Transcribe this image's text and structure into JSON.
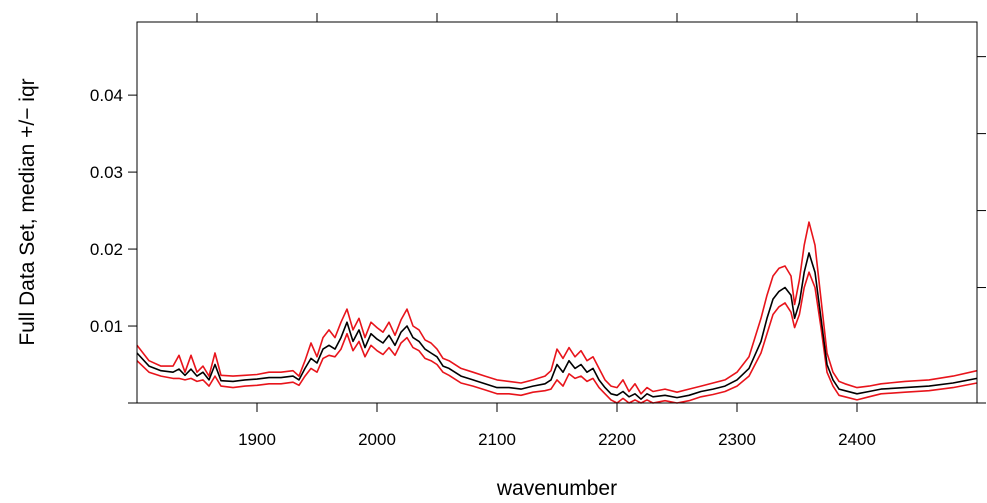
{
  "chart_data": {
    "type": "line",
    "title": "",
    "xlabel": "wavenumber",
    "ylabel": "Full Data Set, median +/− iqr",
    "xlim": [
      1800,
      2500
    ],
    "ylim": [
      0.0,
      0.0495
    ],
    "x_ticks": [
      1900,
      2000,
      2100,
      2200,
      2300,
      2400
    ],
    "x_tick_labels": [
      "1900",
      "2000",
      "2100",
      "2200",
      "2300",
      "2400"
    ],
    "y_ticks": [
      0.01,
      0.02,
      0.03,
      0.04
    ],
    "y_tick_labels": [
      "0.01",
      "0.02",
      "0.03",
      "0.04"
    ],
    "grid": false,
    "x": [
      1800,
      1810,
      1820,
      1830,
      1835,
      1840,
      1845,
      1850,
      1855,
      1860,
      1865,
      1870,
      1880,
      1890,
      1900,
      1910,
      1920,
      1930,
      1935,
      1940,
      1945,
      1950,
      1955,
      1960,
      1965,
      1970,
      1975,
      1980,
      1985,
      1990,
      1995,
      2000,
      2005,
      2010,
      2015,
      2020,
      2025,
      2030,
      2035,
      2040,
      2045,
      2050,
      2055,
      2060,
      2070,
      2080,
      2090,
      2100,
      2110,
      2120,
      2130,
      2140,
      2145,
      2150,
      2155,
      2160,
      2165,
      2170,
      2175,
      2180,
      2185,
      2190,
      2195,
      2200,
      2205,
      2210,
      2215,
      2220,
      2225,
      2230,
      2240,
      2250,
      2260,
      2270,
      2280,
      2290,
      2300,
      2310,
      2320,
      2325,
      2330,
      2335,
      2340,
      2345,
      2348,
      2352,
      2356,
      2360,
      2365,
      2370,
      2375,
      2380,
      2385,
      2390,
      2400,
      2410,
      2420,
      2440,
      2460,
      2480,
      2500
    ],
    "series": [
      {
        "color": "#000000",
        "values": [
          0.0065,
          0.0048,
          0.0042,
          0.004,
          0.0044,
          0.0036,
          0.0044,
          0.0035,
          0.004,
          0.003,
          0.005,
          0.0029,
          0.0028,
          0.003,
          0.0031,
          0.0033,
          0.0033,
          0.0035,
          0.003,
          0.0045,
          0.0058,
          0.0052,
          0.007,
          0.0075,
          0.007,
          0.0085,
          0.0105,
          0.008,
          0.0095,
          0.0072,
          0.009,
          0.0083,
          0.0078,
          0.0088,
          0.0075,
          0.0092,
          0.01,
          0.0085,
          0.008,
          0.007,
          0.0065,
          0.006,
          0.0048,
          0.0045,
          0.0035,
          0.003,
          0.0025,
          0.002,
          0.002,
          0.0018,
          0.0022,
          0.0025,
          0.003,
          0.005,
          0.004,
          0.0055,
          0.0045,
          0.005,
          0.004,
          0.0045,
          0.003,
          0.002,
          0.0012,
          0.001,
          0.0015,
          0.0008,
          0.0012,
          0.0005,
          0.0012,
          0.0008,
          0.001,
          0.0007,
          0.001,
          0.0015,
          0.0018,
          0.0022,
          0.003,
          0.0045,
          0.008,
          0.011,
          0.0135,
          0.0145,
          0.015,
          0.014,
          0.011,
          0.013,
          0.017,
          0.0195,
          0.017,
          0.011,
          0.005,
          0.003,
          0.0018,
          0.0016,
          0.0012,
          0.0015,
          0.0018,
          0.002,
          0.0022,
          0.0026,
          0.0032
        ]
      },
      {
        "color": "#e8141b",
        "values": [
          0.0075,
          0.0055,
          0.0048,
          0.0048,
          0.0062,
          0.004,
          0.0062,
          0.004,
          0.0048,
          0.0035,
          0.0065,
          0.0036,
          0.0035,
          0.0036,
          0.0037,
          0.004,
          0.004,
          0.0042,
          0.0035,
          0.0055,
          0.0078,
          0.006,
          0.0085,
          0.0095,
          0.0085,
          0.0105,
          0.0122,
          0.0095,
          0.011,
          0.0085,
          0.0105,
          0.0098,
          0.0092,
          0.0105,
          0.0088,
          0.0108,
          0.0122,
          0.01,
          0.0095,
          0.0082,
          0.0078,
          0.007,
          0.0058,
          0.0055,
          0.0045,
          0.004,
          0.0035,
          0.003,
          0.0028,
          0.0026,
          0.003,
          0.0035,
          0.0042,
          0.007,
          0.0058,
          0.0072,
          0.006,
          0.0068,
          0.0055,
          0.006,
          0.0045,
          0.003,
          0.0022,
          0.002,
          0.003,
          0.0015,
          0.0025,
          0.0012,
          0.002,
          0.0015,
          0.0018,
          0.0014,
          0.0018,
          0.0022,
          0.0026,
          0.003,
          0.004,
          0.006,
          0.011,
          0.014,
          0.0165,
          0.0175,
          0.0178,
          0.0165,
          0.0128,
          0.016,
          0.0205,
          0.0235,
          0.0205,
          0.0135,
          0.0065,
          0.004,
          0.0028,
          0.0025,
          0.002,
          0.0022,
          0.0025,
          0.0028,
          0.003,
          0.0035,
          0.0042
        ]
      },
      {
        "color": "#e8141b",
        "values": [
          0.0055,
          0.004,
          0.0035,
          0.0032,
          0.0032,
          0.003,
          0.0032,
          0.0028,
          0.003,
          0.0022,
          0.0035,
          0.0022,
          0.002,
          0.0022,
          0.0023,
          0.0025,
          0.0025,
          0.0027,
          0.0023,
          0.0035,
          0.0045,
          0.004,
          0.0058,
          0.0062,
          0.006,
          0.007,
          0.009,
          0.0068,
          0.008,
          0.006,
          0.0075,
          0.0068,
          0.0063,
          0.0072,
          0.0062,
          0.0078,
          0.0085,
          0.0072,
          0.0068,
          0.0058,
          0.0055,
          0.005,
          0.004,
          0.0036,
          0.0026,
          0.0022,
          0.0017,
          0.0012,
          0.0012,
          0.001,
          0.0014,
          0.0016,
          0.0018,
          0.003,
          0.0022,
          0.0038,
          0.0032,
          0.0035,
          0.0028,
          0.0032,
          0.002,
          0.0012,
          0.0004,
          0.0,
          0.0006,
          0.0,
          0.0004,
          0.0,
          0.0004,
          0.0,
          0.0003,
          0.0,
          0.0003,
          0.0008,
          0.0011,
          0.0015,
          0.0022,
          0.0035,
          0.0065,
          0.009,
          0.0115,
          0.0125,
          0.013,
          0.0118,
          0.0098,
          0.0115,
          0.015,
          0.017,
          0.015,
          0.0098,
          0.004,
          0.0022,
          0.001,
          0.0008,
          0.0004,
          0.0008,
          0.0012,
          0.0014,
          0.0016,
          0.002,
          0.0026
        ]
      }
    ]
  }
}
